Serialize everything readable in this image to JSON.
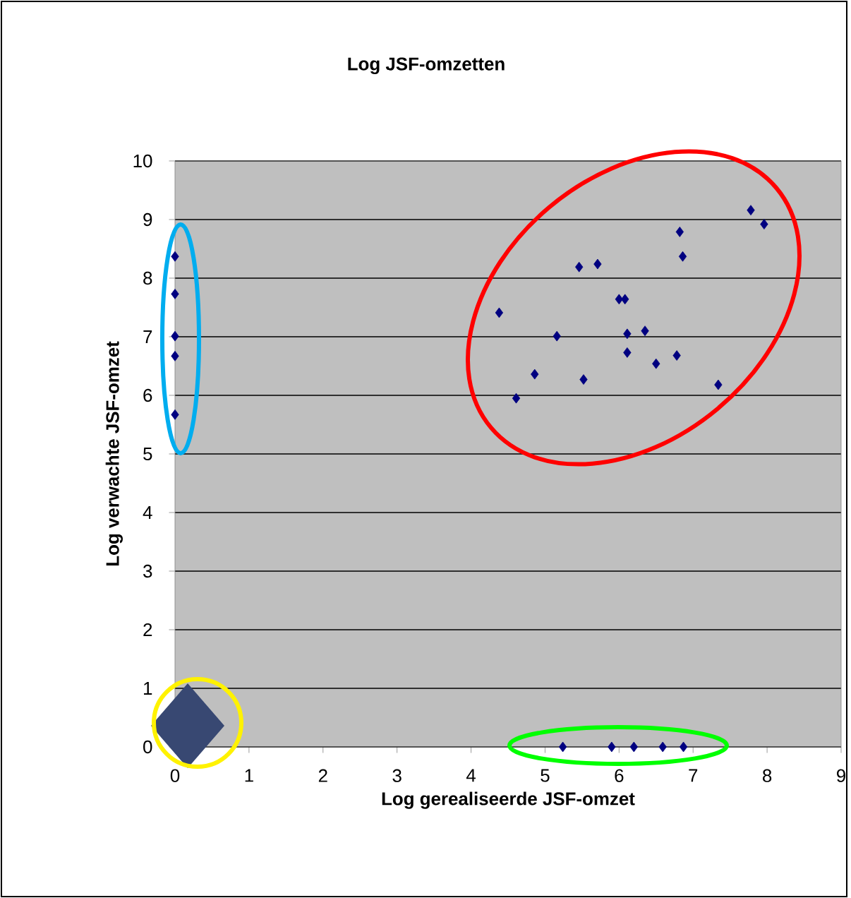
{
  "chart_data": {
    "type": "scatter",
    "title": "Log JSF-omzetten",
    "xlabel": "Log gerealiseerde JSF-omzet",
    "ylabel": "Log verwachte JSF-omzet",
    "series": [
      {
        "color": "#000080",
        "x": [
          0,
          0,
          0,
          0,
          0,
          4.38,
          4.61,
          4.86,
          5.16,
          5.46,
          5.52,
          5.71,
          6.0,
          6.08,
          6.11,
          6.11,
          6.35,
          6.5,
          6.78,
          6.82,
          6.86,
          7.34,
          7.78,
          7.96,
          5.24,
          5.9,
          6.2,
          6.59,
          6.87
        ],
        "values": [
          8.37,
          7.73,
          7.01,
          6.67,
          5.67,
          7.41,
          5.95,
          6.36,
          7.01,
          8.19,
          6.27,
          8.24,
          7.64,
          7.64,
          7.05,
          6.73,
          7.1,
          6.54,
          6.68,
          8.79,
          8.37,
          6.18,
          9.16,
          8.92,
          0,
          0,
          0,
          0,
          0
        ]
      }
    ],
    "xlim": [
      0,
      9
    ],
    "ylim": [
      0,
      10
    ],
    "xticks": [
      0,
      1,
      2,
      3,
      4,
      5,
      6,
      7,
      8,
      9
    ],
    "yticks": [
      0,
      1,
      2,
      3,
      4,
      5,
      6,
      7,
      8,
      9,
      10
    ],
    "grid": "y",
    "marker": "diamond"
  }
}
